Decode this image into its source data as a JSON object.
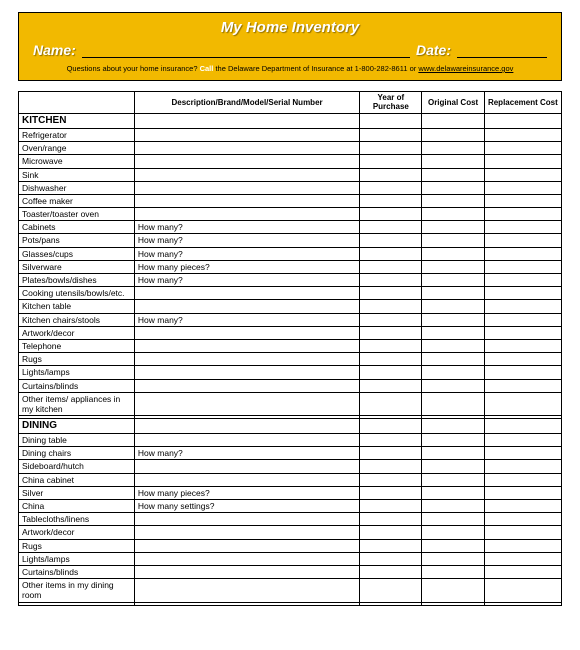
{
  "header": {
    "bg_color": "#f2b900",
    "title": "My Home Inventory",
    "name_label": "Name:",
    "date_label": "Date:",
    "questions_prefix": "Questions about your home insurance? ",
    "call_word": "Call",
    "questions_mid": " the Delaware Department of Insurance at 1-800-282-8611 or ",
    "link_text": "www.delawareinsurance.gov"
  },
  "columns": {
    "item": "",
    "desc": "Description/Brand/Model/Serial Number",
    "year": "Year of Purchase",
    "orig": "Original Cost",
    "repl": "Replacement Cost"
  },
  "sections": [
    {
      "name": "KITCHEN",
      "rows": [
        {
          "item": "Refrigerator",
          "desc": ""
        },
        {
          "item": "Oven/range",
          "desc": ""
        },
        {
          "item": "Microwave",
          "desc": ""
        },
        {
          "item": "Sink",
          "desc": ""
        },
        {
          "item": "Dishwasher",
          "desc": ""
        },
        {
          "item": "Coffee maker",
          "desc": ""
        },
        {
          "item": "Toaster/toaster oven",
          "desc": ""
        },
        {
          "item": "Cabinets",
          "desc": "How many?"
        },
        {
          "item": "Pots/pans",
          "desc": "How many?"
        },
        {
          "item": "Glasses/cups",
          "desc": "How many?"
        },
        {
          "item": "Silverware",
          "desc": "How many pieces?"
        },
        {
          "item": "Plates/bowls/dishes",
          "desc": "How many?"
        },
        {
          "item": "Cooking utensils/bowls/etc.",
          "desc": ""
        },
        {
          "item": "Kitchen table",
          "desc": ""
        },
        {
          "item": "Kitchen chairs/stools",
          "desc": "How many?"
        },
        {
          "item": "Artwork/decor",
          "desc": ""
        },
        {
          "item": "Telephone",
          "desc": ""
        },
        {
          "item": "Rugs",
          "desc": ""
        },
        {
          "item": "Lights/lamps",
          "desc": ""
        },
        {
          "item": "Curtains/blinds",
          "desc": ""
        },
        {
          "item": "Other items/ appliances in my kitchen",
          "desc": ""
        },
        {
          "item": "",
          "desc": ""
        }
      ]
    },
    {
      "name": "DINING",
      "rows": [
        {
          "item": "Dining table",
          "desc": ""
        },
        {
          "item": "Dining chairs",
          "desc": "How many?"
        },
        {
          "item": "Sideboard/hutch",
          "desc": ""
        },
        {
          "item": "China cabinet",
          "desc": ""
        },
        {
          "item": "Silver",
          "desc": "How many pieces?"
        },
        {
          "item": "China",
          "desc": "How many settings?"
        },
        {
          "item": "Tablecloths/linens",
          "desc": ""
        },
        {
          "item": "Artwork/decor",
          "desc": ""
        },
        {
          "item": "Rugs",
          "desc": ""
        },
        {
          "item": "Lights/lamps",
          "desc": ""
        },
        {
          "item": "Curtains/blinds",
          "desc": ""
        },
        {
          "item": "Other items in my dining room",
          "desc": ""
        },
        {
          "item": "",
          "desc": ""
        }
      ]
    }
  ]
}
